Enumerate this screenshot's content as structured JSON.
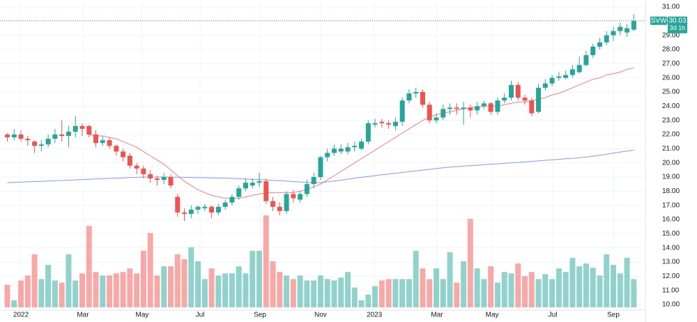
{
  "chart_data": {
    "type": "candlestick",
    "symbol": "SVW",
    "countdown": "3d 1h",
    "up_color": "#26a69a",
    "down_color": "#ef5350",
    "grid": true,
    "ylim": [
      10,
      31
    ],
    "yticks": [
      {
        "value": 10,
        "label": "10.00"
      },
      {
        "value": 11,
        "label": "11.00"
      },
      {
        "value": 12,
        "label": "12.00"
      },
      {
        "value": 13,
        "label": "13.00"
      },
      {
        "value": 14,
        "label": "14.00"
      },
      {
        "value": 15,
        "label": "15.00"
      },
      {
        "value": 16,
        "label": "16.00"
      },
      {
        "value": 17,
        "label": "17.00"
      },
      {
        "value": 18,
        "label": "18.00"
      },
      {
        "value": 19,
        "label": "19.00"
      },
      {
        "value": 20,
        "label": "20.00"
      },
      {
        "value": 21,
        "label": "21.00"
      },
      {
        "value": 22,
        "label": "22.00"
      },
      {
        "value": 23,
        "label": "23.00"
      },
      {
        "value": 24,
        "label": "24.00"
      },
      {
        "value": 25,
        "label": "25.00"
      },
      {
        "value": 26,
        "label": "26.00"
      },
      {
        "value": 27,
        "label": "27.00"
      },
      {
        "value": 28,
        "label": "28.00"
      },
      {
        "value": 29,
        "label": "29.00"
      },
      {
        "value": 30,
        "label": "30.00"
      },
      {
        "value": 31,
        "label": "31.00"
      }
    ],
    "xticks": [
      {
        "value": 2,
        "label": "2022"
      },
      {
        "value": 11.1,
        "label": "Mar"
      },
      {
        "value": 19.8,
        "label": "May"
      },
      {
        "value": 28.3,
        "label": "Jul"
      },
      {
        "value": 37.1,
        "label": "Sep"
      },
      {
        "value": 46,
        "label": "Nov"
      },
      {
        "value": 53.9,
        "label": "2023"
      },
      {
        "value": 63.1,
        "label": "Mar"
      },
      {
        "value": 71.2,
        "label": "May"
      },
      {
        "value": 80.1,
        "label": "Jul"
      },
      {
        "value": 89,
        "label": "Sep"
      }
    ],
    "open": [
      22.0,
      21.8,
      22.0,
      21.7,
      21.5,
      21.2,
      21.3,
      21.7,
      22.0,
      21.9,
      22.2,
      22.6,
      22.6,
      22.0,
      21.4,
      21.6,
      21.2,
      20.8,
      20.5,
      19.8,
      19.6,
      19.2,
      18.9,
      18.8,
      19.0,
      17.6,
      16.5,
      16.4,
      16.7,
      16.8,
      16.9,
      16.5,
      16.9,
      17.2,
      17.6,
      18.2,
      18.4,
      18.6,
      18.7,
      17.3,
      16.9,
      16.6,
      17.8,
      17.4,
      17.8,
      18.5,
      19.0,
      20.4,
      20.7,
      20.8,
      20.8,
      21.1,
      21.0,
      21.5,
      22.7,
      22.9,
      22.8,
      22.6,
      22.9,
      24.4,
      24.9,
      25.0,
      24.1,
      23.0,
      23.2,
      23.8,
      23.9,
      23.8,
      23.9,
      23.7,
      24.0,
      24.2,
      23.6,
      24.4,
      24.6,
      25.5,
      24.6,
      24.4,
      23.6,
      25.3,
      25.6,
      26.0,
      26.0,
      26.2,
      26.4,
      26.9,
      27.6,
      28.2,
      28.5,
      29.0,
      29.3,
      29.2,
      29.4
    ],
    "high": [
      22.1,
      22.4,
      22.3,
      21.9,
      21.6,
      21.6,
      22.0,
      22.4,
      23.0,
      22.6,
      23.3,
      22.8,
      22.7,
      22.3,
      21.9,
      21.8,
      21.3,
      21.0,
      20.7,
      20.0,
      19.8,
      19.5,
      19.1,
      19.3,
      19.2,
      17.8,
      16.8,
      17.0,
      17.0,
      17.1,
      17.0,
      17.1,
      17.4,
      17.8,
      18.4,
      18.9,
      18.9,
      19.3,
      18.9,
      17.6,
      17.2,
      18.0,
      18.1,
      18.0,
      18.8,
      19.3,
      20.5,
      21.0,
      21.3,
      21.3,
      21.4,
      21.5,
      21.7,
      23.0,
      23.1,
      23.1,
      23.0,
      23.2,
      24.6,
      25.2,
      25.3,
      25.2,
      24.3,
      23.5,
      24.1,
      24.2,
      24.2,
      24.3,
      24.1,
      24.3,
      24.4,
      24.3,
      24.6,
      24.9,
      25.8,
      25.7,
      24.8,
      24.6,
      25.6,
      25.9,
      26.2,
      26.4,
      26.5,
      26.9,
      27.5,
      27.9,
      28.4,
      28.8,
      29.3,
      29.6,
      29.9,
      29.8,
      30.5
    ],
    "low": [
      21.5,
      21.6,
      21.5,
      21.2,
      20.7,
      20.8,
      21.1,
      21.4,
      21.5,
      21.1,
      21.8,
      21.9,
      21.8,
      21.1,
      21.2,
      21.0,
      20.5,
      20.1,
      19.6,
      19.2,
      18.9,
      18.6,
      18.4,
      18.5,
      18.2,
      16.2,
      15.9,
      16.1,
      16.4,
      16.6,
      16.1,
      16.3,
      16.7,
      17.0,
      17.4,
      18.0,
      18.2,
      18.3,
      17.1,
      16.6,
      16.3,
      16.4,
      17.2,
      17.2,
      17.6,
      18.2,
      18.8,
      20.1,
      20.5,
      20.6,
      20.6,
      20.8,
      20.9,
      21.3,
      22.5,
      22.5,
      22.4,
      22.3,
      22.6,
      24.2,
      24.6,
      23.9,
      22.8,
      22.8,
      23.0,
      23.4,
      23.4,
      22.7,
      23.2,
      23.4,
      23.8,
      23.4,
      23.4,
      24.2,
      24.4,
      24.4,
      24.1,
      23.3,
      23.5,
      25.1,
      25.4,
      25.8,
      25.9,
      26.0,
      26.3,
      26.8,
      27.4,
      28.0,
      28.3,
      28.6,
      29.0,
      28.9,
      29.3
    ],
    "close": [
      21.8,
      22.0,
      21.7,
      21.6,
      21.2,
      21.3,
      21.7,
      22.0,
      21.9,
      22.2,
      22.6,
      22.4,
      22.0,
      21.4,
      21.6,
      21.2,
      20.8,
      20.4,
      19.8,
      19.6,
      19.2,
      18.9,
      18.8,
      19.0,
      18.4,
      16.5,
      16.4,
      16.7,
      16.9,
      16.9,
      16.5,
      16.9,
      17.2,
      17.6,
      18.2,
      18.6,
      18.6,
      18.7,
      17.3,
      16.9,
      16.6,
      17.8,
      17.5,
      17.8,
      18.5,
      19.0,
      20.4,
      20.7,
      21.0,
      21.0,
      21.1,
      21.2,
      21.5,
      22.8,
      22.8,
      22.8,
      22.7,
      22.9,
      24.4,
      24.9,
      25.0,
      24.1,
      23.0,
      23.2,
      23.8,
      23.9,
      23.8,
      23.9,
      23.7,
      24.0,
      24.2,
      23.6,
      24.4,
      24.6,
      25.5,
      24.6,
      24.4,
      23.5,
      25.3,
      25.6,
      26.0,
      26.1,
      26.2,
      26.6,
      26.9,
      27.6,
      28.2,
      28.5,
      29.0,
      29.3,
      29.6,
      29.5,
      30.03
    ],
    "volume": [
      32,
      10,
      38,
      45,
      75,
      40,
      60,
      38,
      35,
      75,
      38,
      48,
      115,
      50,
      45,
      45,
      48,
      50,
      55,
      48,
      80,
      105,
      45,
      58,
      58,
      75,
      68,
      85,
      65,
      40,
      55,
      45,
      48,
      48,
      58,
      48,
      80,
      80,
      130,
      65,
      50,
      45,
      40,
      45,
      38,
      38,
      45,
      40,
      38,
      42,
      50,
      28,
      10,
      18,
      30,
      38,
      40,
      40,
      40,
      40,
      80,
      55,
      40,
      55,
      40,
      78,
      35,
      65,
      125,
      55,
      40,
      58,
      35,
      50,
      48,
      62,
      44,
      50,
      40,
      47,
      40,
      55,
      50,
      70,
      58,
      62,
      56,
      45,
      75,
      60,
      48,
      70,
      40
    ],
    "series": [
      {
        "color": "#f77c80",
        "values": [
          null,
          null,
          null,
          null,
          null,
          null,
          null,
          null,
          null,
          null,
          null,
          null,
          22.0,
          21.9,
          21.9,
          21.8,
          21.7,
          21.5,
          21.3,
          21.1,
          20.8,
          20.5,
          20.2,
          19.9,
          19.5,
          19.1,
          18.7,
          18.4,
          18.1,
          17.9,
          17.7,
          17.6,
          17.5,
          17.5,
          17.5,
          17.6,
          17.7,
          17.8,
          17.9,
          17.9,
          17.9,
          17.9,
          17.9,
          18.0,
          18.1,
          18.3,
          18.5,
          18.8,
          19.1,
          19.4,
          19.7,
          20.0,
          20.3,
          20.6,
          20.9,
          21.2,
          21.5,
          21.8,
          22.1,
          22.4,
          22.7,
          23.0,
          23.2,
          23.4,
          23.5,
          23.6,
          23.7,
          23.8,
          23.9,
          23.9,
          24.0,
          24.0,
          24.0,
          24.1,
          24.2,
          24.3,
          24.3,
          24.4,
          24.5,
          24.6,
          24.8,
          24.9,
          25.1,
          25.3,
          25.5,
          25.7,
          25.9,
          26.0,
          26.2,
          26.3,
          26.4,
          26.6,
          26.7
        ]
      },
      {
        "color": "#7e9cf0",
        "values": [
          18.6,
          18.62,
          18.64,
          18.66,
          18.68,
          18.7,
          18.72,
          18.74,
          18.76,
          18.78,
          18.8,
          18.82,
          18.84,
          18.86,
          18.88,
          18.9,
          18.92,
          18.94,
          18.96,
          18.98,
          19.0,
          19.0,
          19.0,
          19.0,
          19.0,
          18.99,
          18.98,
          18.97,
          18.96,
          18.95,
          18.94,
          18.93,
          18.92,
          18.9,
          18.88,
          18.86,
          18.84,
          18.82,
          18.8,
          18.77,
          18.74,
          18.71,
          18.68,
          18.65,
          18.62,
          18.6,
          18.6,
          18.66,
          18.72,
          18.78,
          18.85,
          18.92,
          18.98,
          19.04,
          19.1,
          19.16,
          19.21,
          19.27,
          19.32,
          19.38,
          19.43,
          19.49,
          19.54,
          19.6,
          19.65,
          19.7,
          19.73,
          19.77,
          19.8,
          19.83,
          19.87,
          19.9,
          19.93,
          19.97,
          20.0,
          20.03,
          20.07,
          20.1,
          20.14,
          20.18,
          20.21,
          20.25,
          20.29,
          20.32,
          20.36,
          20.4,
          20.47,
          20.54,
          20.61,
          20.69,
          20.76,
          20.83,
          20.9
        ]
      }
    ]
  }
}
